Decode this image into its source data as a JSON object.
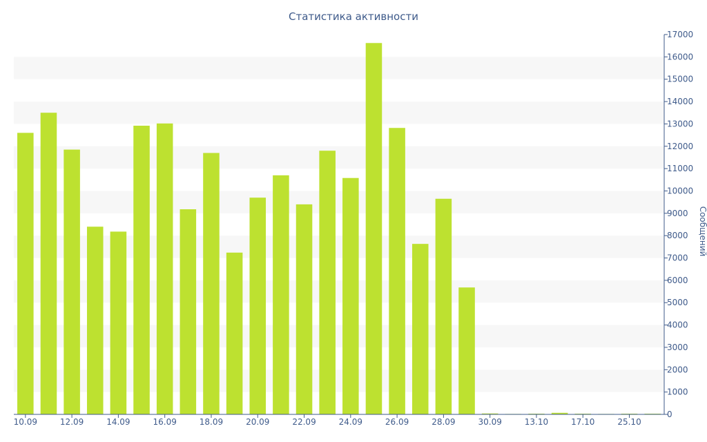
{
  "chart_data": {
    "type": "bar",
    "title": "Статистика активности",
    "ylabel": "Сообщений",
    "xlabel": "",
    "ylim": [
      0,
      17000
    ],
    "y_axis_side": "right",
    "y_ticks": [
      0,
      1000,
      2000,
      3000,
      4000,
      5000,
      6000,
      7000,
      8000,
      9000,
      10000,
      11000,
      12000,
      13000,
      14000,
      15000,
      16000,
      17000
    ],
    "x_tick_labels": [
      "10.09",
      "12.09",
      "14.09",
      "16.09",
      "18.09",
      "20.09",
      "22.09",
      "24.09",
      "26.09",
      "28.09",
      "30.09",
      "13.10",
      "17.10",
      "25.10"
    ],
    "grid": "alternating horizontal bands",
    "bar_color": "#bde130",
    "band_color": "#f7f7f7",
    "axis_color": "#3e5a8a",
    "values": [
      12600,
      13500,
      11850,
      8400,
      8180,
      12920,
      13020,
      9180,
      11700,
      7240,
      9700,
      10700,
      9400,
      11800,
      10580,
      16620,
      12820,
      7630,
      9650,
      5680,
      40,
      20,
      30,
      70,
      30,
      20,
      30,
      30
    ]
  }
}
